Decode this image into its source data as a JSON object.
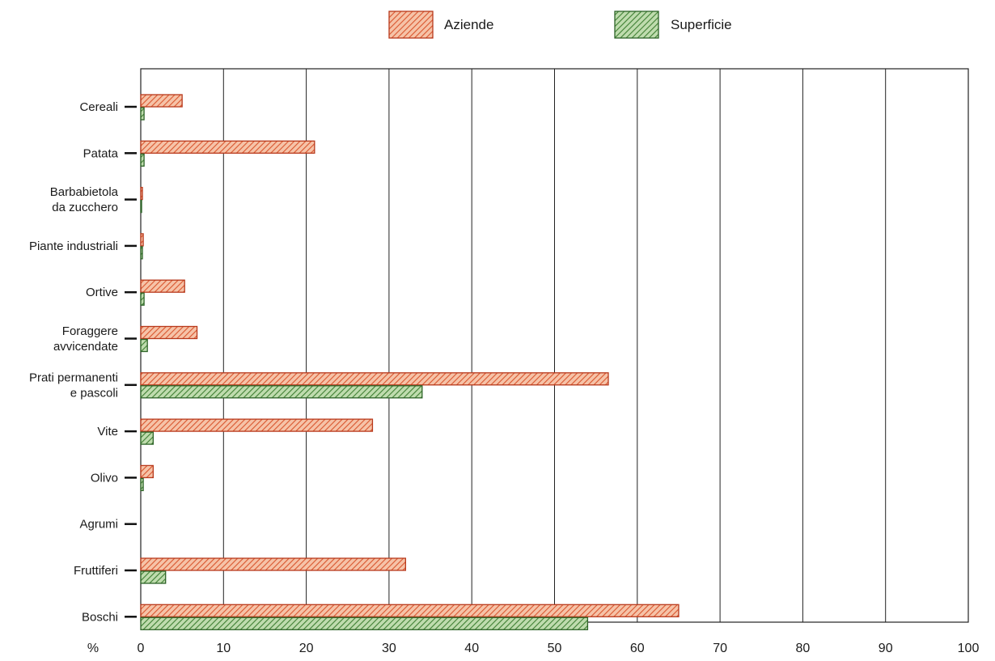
{
  "chart_data": {
    "type": "bar",
    "orientation": "horizontal",
    "categories": [
      [
        "Cereali"
      ],
      [
        "Patata"
      ],
      [
        "Barbabietola",
        "da zucchero"
      ],
      [
        "Piante industriali"
      ],
      [
        "Ortive"
      ],
      [
        "Foraggere",
        "avvicendate"
      ],
      [
        "Prati permanenti",
        "e pascoli"
      ],
      [
        "Vite"
      ],
      [
        "Olivo"
      ],
      [
        "Agrumi"
      ],
      [
        "Fruttiferi"
      ],
      [
        "Boschi"
      ]
    ],
    "series": [
      {
        "name": "Aziende",
        "values": [
          5,
          21,
          0.2,
          0.3,
          5.3,
          6.8,
          56.5,
          28,
          1.5,
          0,
          32,
          65
        ]
      },
      {
        "name": "Superficie",
        "values": [
          0.4,
          0.4,
          0.1,
          0.2,
          0.4,
          0.8,
          34,
          1.5,
          0.3,
          0,
          3,
          54
        ]
      }
    ],
    "xlabel": "%",
    "xlim": [
      0,
      100
    ],
    "xticks": [
      0,
      10,
      20,
      30,
      40,
      50,
      60,
      70,
      80,
      90,
      100
    ],
    "grid": true,
    "legend_position": "top-center",
    "colors": {
      "Aziende": "#e8734a",
      "Aziende_stroke": "#b8391c",
      "Superficie": "#5e9a4a",
      "Superficie_stroke": "#2e6428"
    }
  }
}
